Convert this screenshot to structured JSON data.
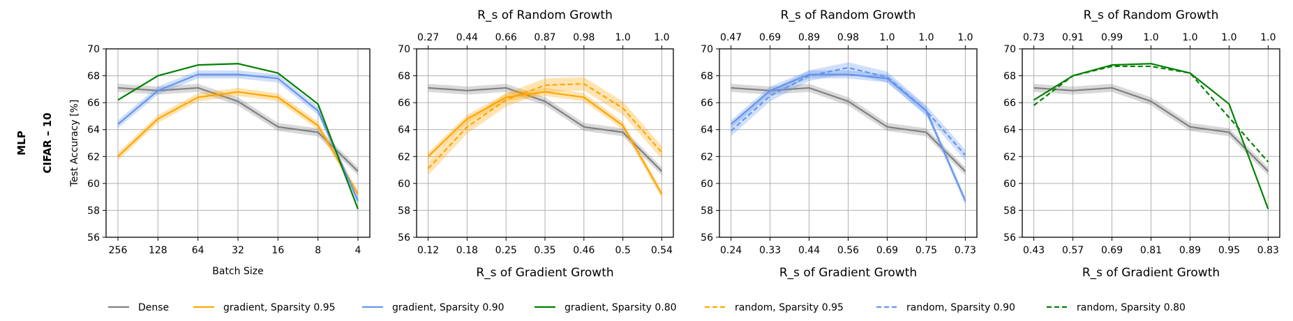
{
  "row_label": {
    "line1": "MLP",
    "line2": "CIFAR – 10"
  },
  "colors": {
    "dense": "#808080",
    "s95": "#ffa500",
    "s90": "#6495ed",
    "s80": "#008000",
    "grid": "#b0b0b0"
  },
  "legend": [
    {
      "label": "Dense",
      "color": "#808080",
      "dash": false
    },
    {
      "label": "gradient, Sparsity 0.95",
      "color": "#ffa500",
      "dash": false
    },
    {
      "label": "gradient, Sparsity 0.90",
      "color": "#6495ed",
      "dash": false
    },
    {
      "label": "gradient, Sparsity 0.80",
      "color": "#008000",
      "dash": false
    },
    {
      "label": "random, Sparsity 0.95",
      "color": "#ffa500",
      "dash": true
    },
    {
      "label": "random, Sparsity 0.90",
      "color": "#6495ed",
      "dash": true
    },
    {
      "label": "random, Sparsity 0.80",
      "color": "#008000",
      "dash": true
    }
  ],
  "chart_data": [
    {
      "type": "line",
      "ylabel": "Test Accuracy [%]",
      "xlabel": "Batch Size",
      "top_label": "",
      "top_ticks": [],
      "categories": [
        "256",
        "128",
        "64",
        "32",
        "16",
        "8",
        "4"
      ],
      "ylim": [
        56,
        70
      ],
      "yticks": [
        56,
        58,
        60,
        62,
        64,
        66,
        68,
        70
      ],
      "series": [
        {
          "name": "Dense",
          "color": "#808080",
          "dash": false,
          "values": [
            67.1,
            66.9,
            67.1,
            66.1,
            64.2,
            63.8,
            60.9
          ],
          "band": 0.3
        },
        {
          "name": "gradient, Sparsity 0.95",
          "color": "#ffa500",
          "dash": false,
          "values": [
            62.0,
            64.8,
            66.4,
            66.8,
            66.4,
            64.3,
            59.2
          ],
          "band": 0.3
        },
        {
          "name": "gradient, Sparsity 0.90",
          "color": "#6495ed",
          "dash": false,
          "values": [
            64.4,
            66.9,
            68.1,
            68.1,
            67.8,
            65.4,
            58.7
          ],
          "band": 0.3
        },
        {
          "name": "gradient, Sparsity 0.80",
          "color": "#008000",
          "dash": false,
          "values": [
            66.2,
            68.0,
            68.8,
            68.9,
            68.2,
            65.9,
            58.1
          ],
          "band": 0
        }
      ]
    },
    {
      "type": "line",
      "ylabel": "",
      "xlabel": "R_s of Gradient Growth",
      "top_label": "R_s of Random Growth",
      "top_ticks": [
        "0.27",
        "0.44",
        "0.66",
        "0.87",
        "0.98",
        "1.0",
        "1.0"
      ],
      "categories": [
        "0.12",
        "0.18",
        "0.25",
        "0.35",
        "0.46",
        "0.5",
        "0.54"
      ],
      "ylim": [
        56,
        70
      ],
      "yticks": [
        56,
        58,
        60,
        62,
        64,
        66,
        68,
        70
      ],
      "series": [
        {
          "name": "Dense",
          "color": "#808080",
          "dash": false,
          "values": [
            67.1,
            66.9,
            67.1,
            66.1,
            64.2,
            63.8,
            60.9
          ],
          "band": 0.3
        },
        {
          "name": "gradient, Sparsity 0.95",
          "color": "#ffa500",
          "dash": false,
          "values": [
            62.0,
            64.8,
            66.4,
            66.8,
            66.4,
            64.3,
            59.2
          ],
          "band": 0.3
        },
        {
          "name": "random, Sparsity 0.95",
          "color": "#ffa500",
          "dash": true,
          "values": [
            61.1,
            64.2,
            66.2,
            67.3,
            67.4,
            65.6,
            62.3
          ],
          "band": 0.5
        }
      ]
    },
    {
      "type": "line",
      "ylabel": "",
      "xlabel": "R_s of Gradient Growth",
      "top_label": "R_s of Random Growth",
      "top_ticks": [
        "0.47",
        "0.69",
        "0.89",
        "0.98",
        "1.0",
        "1.0",
        "1.0"
      ],
      "categories": [
        "0.24",
        "0.33",
        "0.44",
        "0.56",
        "0.69",
        "0.75",
        "0.73"
      ],
      "ylim": [
        56,
        70
      ],
      "yticks": [
        56,
        58,
        60,
        62,
        64,
        66,
        68,
        70
      ],
      "series": [
        {
          "name": "Dense",
          "color": "#808080",
          "dash": false,
          "values": [
            67.1,
            66.9,
            67.1,
            66.1,
            64.2,
            63.8,
            60.9
          ],
          "band": 0.3
        },
        {
          "name": "gradient, Sparsity 0.90",
          "color": "#6495ed",
          "dash": false,
          "values": [
            64.4,
            66.9,
            68.1,
            68.1,
            67.8,
            65.4,
            58.7
          ],
          "band": 0.3
        },
        {
          "name": "random, Sparsity 0.90",
          "color": "#6495ed",
          "dash": true,
          "values": [
            63.9,
            66.5,
            68.0,
            68.6,
            67.9,
            65.4,
            62.1
          ],
          "band": 0.4
        }
      ]
    },
    {
      "type": "line",
      "ylabel": "",
      "xlabel": "R_s of Gradient Growth",
      "top_label": "R_s of Random Growth",
      "top_ticks": [
        "0.73",
        "0.91",
        "0.99",
        "1.0",
        "1.0",
        "1.0",
        "1.0"
      ],
      "categories": [
        "0.43",
        "0.57",
        "0.69",
        "0.81",
        "0.89",
        "0.95",
        "0.83"
      ],
      "ylim": [
        56,
        70
      ],
      "yticks": [
        56,
        58,
        60,
        62,
        64,
        66,
        68,
        70
      ],
      "series": [
        {
          "name": "Dense",
          "color": "#808080",
          "dash": false,
          "values": [
            67.1,
            66.9,
            67.1,
            66.1,
            64.2,
            63.8,
            60.9
          ],
          "band": 0.3
        },
        {
          "name": "gradient, Sparsity 0.80",
          "color": "#008000",
          "dash": false,
          "values": [
            66.2,
            68.0,
            68.8,
            68.9,
            68.2,
            65.9,
            58.1
          ],
          "band": 0
        },
        {
          "name": "random, Sparsity 0.80",
          "color": "#008000",
          "dash": true,
          "values": [
            65.8,
            68.0,
            68.7,
            68.7,
            68.2,
            64.9,
            61.6
          ],
          "band": 0
        }
      ]
    }
  ]
}
